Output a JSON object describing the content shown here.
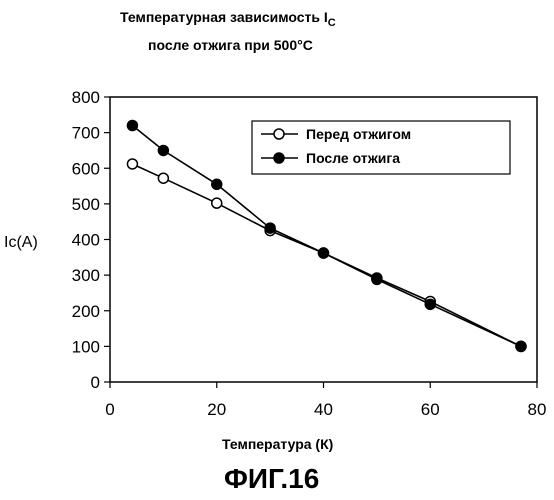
{
  "chart_data": {
    "type": "line",
    "title_line1": "Температурная зависимость I",
    "title_line1_sub": "C",
    "title_line2": "после отжига при 500°C",
    "ylabel": "Ic(A)",
    "xlabel": "Температура (К)",
    "xlim": [
      0,
      80
    ],
    "ylim": [
      0,
      800
    ],
    "x_ticks": [
      "0",
      "20",
      "40",
      "60",
      "80"
    ],
    "y_ticks": [
      "0",
      "100",
      "200",
      "300",
      "400",
      "500",
      "600",
      "700",
      "800"
    ],
    "legend_position": "top-right",
    "grid": false,
    "series": [
      {
        "name": "Перед отжигом",
        "marker": "open-circle",
        "x": [
          4.2,
          10,
          20,
          30,
          40,
          50,
          60,
          77
        ],
        "y": [
          612,
          572,
          502,
          425,
          362,
          292,
          226,
          100
        ]
      },
      {
        "name": "После отжига",
        "marker": "filled-circle",
        "x": [
          4.2,
          10,
          20,
          30,
          40,
          50,
          60,
          77
        ],
        "y": [
          720,
          650,
          555,
          432,
          362,
          288,
          218,
          100
        ]
      }
    ]
  },
  "figure_label": "ФИГ.16",
  "colors": {
    "line": "#000000",
    "background": "#ffffff"
  }
}
